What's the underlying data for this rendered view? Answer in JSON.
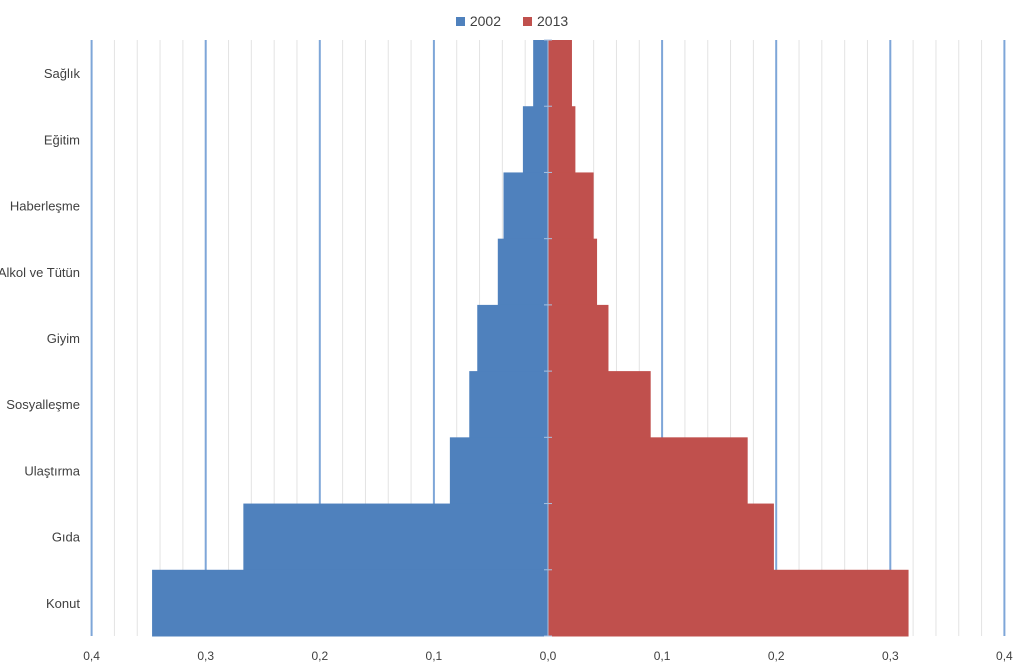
{
  "chart_data": {
    "type": "bar",
    "orientation": "horizontal-butterfly",
    "categories": [
      "Sağlık",
      "Eğitim",
      "Haberleşme",
      "Alkol ve Tütün",
      "Giyim",
      "Sosyalleşme",
      "Ulaştırma",
      "Gıda",
      "Konut"
    ],
    "series": [
      {
        "name": "2002",
        "color": "#4f81bd",
        "values": [
          0.013,
          0.022,
          0.039,
          0.044,
          0.062,
          0.069,
          0.086,
          0.267,
          0.347
        ]
      },
      {
        "name": "2013",
        "color": "#c0504d",
        "values": [
          0.021,
          0.024,
          0.04,
          0.043,
          0.053,
          0.09,
          0.175,
          0.198,
          0.316
        ]
      }
    ],
    "xlim": [
      -0.4,
      0.4
    ],
    "xticks": [
      "0,4",
      "0,3",
      "0,2",
      "0,1",
      "0,0",
      "0,1",
      "0,2",
      "0,3",
      "0,4"
    ],
    "grid": true,
    "legend_position": "top"
  }
}
